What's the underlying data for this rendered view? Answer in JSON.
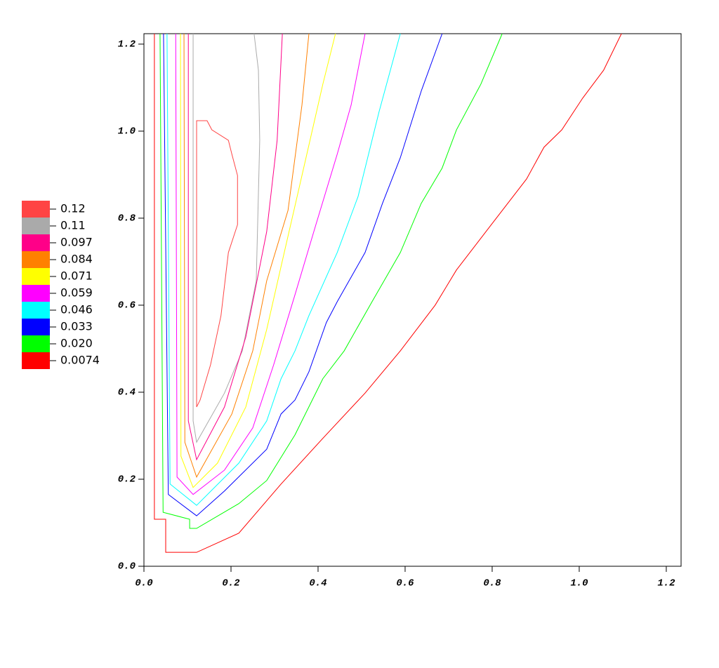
{
  "chart_data": {
    "type": "contour",
    "xlim": [
      0,
      1.234
    ],
    "ylim": [
      0,
      1.224
    ],
    "xticks": [
      {
        "value": 0,
        "label": "0.0"
      },
      0.2,
      0.4,
      0.6,
      0.8,
      {
        "value": 1,
        "label": "1.0"
      },
      1.2
    ],
    "yticks": [
      {
        "value": 0,
        "label": "0.0"
      },
      0.2,
      0.4,
      0.6,
      0.8,
      {
        "value": 1,
        "label": "1.0"
      },
      1.2
    ],
    "contours": [
      {
        "level": 0.12,
        "label": "0.12",
        "color": "#ff4444",
        "x": [
          0.121,
          0.121,
          0.145,
          0.156,
          0.194,
          0.202,
          0.215,
          0.215,
          0.194,
          0.177,
          0.153,
          0.129,
          0.121
        ],
        "y": [
          0.366,
          1.024,
          1.024,
          1.003,
          0.979,
          0.947,
          0.898,
          0.785,
          0.721,
          0.576,
          0.463,
          0.382,
          0.366
        ]
      },
      {
        "level": 0.11,
        "label": "0.11",
        "color": "#aaaaaa",
        "x": [
          0.253,
          0.263,
          0.266,
          0.258,
          0.226,
          0.185,
          0.121,
          0.113,
          0.113,
          0.113
        ],
        "y": [
          1.224,
          1.14,
          0.979,
          0.656,
          0.495,
          0.398,
          0.285,
          0.334,
          1.044,
          1.224
        ]
      },
      {
        "level": 0.097,
        "label": "0.097",
        "color": "#ff0088",
        "x": [
          0.102,
          0.102,
          0.121,
          0.185,
          0.234,
          0.282,
          0.306,
          0.318
        ],
        "y": [
          1.224,
          0.334,
          0.245,
          0.366,
          0.527,
          0.769,
          0.979,
          1.224
        ]
      },
      {
        "level": 0.084,
        "label": "0.084",
        "color": "#ff8000",
        "x": [
          0.092,
          0.094,
          0.121,
          0.202,
          0.25,
          0.282,
          0.331,
          0.363,
          0.379
        ],
        "y": [
          1.224,
          0.285,
          0.205,
          0.35,
          0.495,
          0.656,
          0.818,
          1.06,
          1.224
        ]
      },
      {
        "level": 0.071,
        "label": "0.071",
        "color": "#ffff00",
        "x": [
          0.084,
          0.085,
          0.113,
          0.169,
          0.234,
          0.282,
          0.315,
          0.363,
          0.411,
          0.44
        ],
        "y": [
          1.224,
          0.253,
          0.181,
          0.237,
          0.366,
          0.544,
          0.689,
          0.898,
          1.108,
          1.224
        ]
      },
      {
        "level": 0.059,
        "label": "0.059",
        "color": "#ff00ff",
        "x": [
          0.073,
          0.076,
          0.113,
          0.185,
          0.25,
          0.298,
          0.347,
          0.395,
          0.444,
          0.476,
          0.508
        ],
        "y": [
          1.224,
          0.205,
          0.165,
          0.221,
          0.318,
          0.463,
          0.624,
          0.785,
          0.947,
          1.06,
          1.224
        ]
      },
      {
        "level": 0.046,
        "label": "0.046",
        "color": "#00ffff",
        "x": [
          0.053,
          0.06,
          0.121,
          0.218,
          0.282,
          0.315,
          0.347,
          0.379,
          0.444,
          0.492,
          0.54,
          0.589
        ],
        "y": [
          1.224,
          0.189,
          0.14,
          0.237,
          0.334,
          0.431,
          0.495,
          0.576,
          0.721,
          0.85,
          1.044,
          1.224
        ]
      },
      {
        "level": 0.033,
        "label": "0.033",
        "color": "#0000ff",
        "x": [
          0.045,
          0.056,
          0.121,
          0.185,
          0.282,
          0.315,
          0.347,
          0.379,
          0.419,
          0.444,
          0.508,
          0.548,
          0.589,
          0.637,
          0.685
        ],
        "y": [
          1.224,
          0.165,
          0.116,
          0.173,
          0.269,
          0.35,
          0.382,
          0.447,
          0.56,
          0.608,
          0.721,
          0.834,
          0.939,
          1.092,
          1.224
        ]
      },
      {
        "level": 0.02,
        "label": "0.020",
        "color": "#00ff00",
        "x": [
          0.037,
          0.044,
          0.105,
          0.105,
          0.121,
          0.218,
          0.282,
          0.347,
          0.411,
          0.46,
          0.524,
          0.589,
          0.637,
          0.685,
          0.718,
          0.774,
          0.823
        ],
        "y": [
          1.224,
          0.124,
          0.108,
          0.087,
          0.087,
          0.144,
          0.197,
          0.302,
          0.431,
          0.495,
          0.608,
          0.721,
          0.834,
          0.915,
          1.003,
          1.108,
          1.224
        ]
      },
      {
        "level": 0.0074,
        "label": "0.0074",
        "color": "#ff0000",
        "x": [
          0.024,
          0.024,
          0.05,
          0.05,
          0.121,
          0.218,
          0.315,
          0.411,
          0.508,
          0.589,
          0.669,
          0.718,
          0.798,
          0.879,
          0.919,
          0.96,
          1.008,
          1.056,
          1.097
        ],
        "y": [
          1.224,
          0.108,
          0.108,
          0.032,
          0.032,
          0.076,
          0.189,
          0.294,
          0.398,
          0.495,
          0.6,
          0.681,
          0.785,
          0.89,
          0.963,
          1.003,
          1.076,
          1.14,
          1.224
        ]
      }
    ]
  }
}
